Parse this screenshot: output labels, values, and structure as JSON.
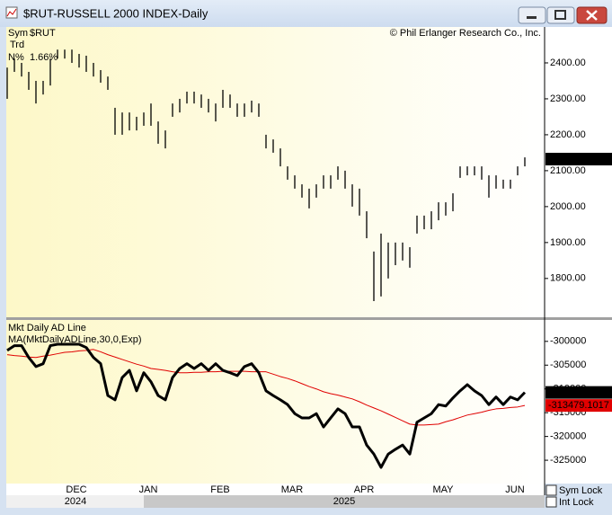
{
  "window": {
    "title": "$RUT-RUSSELL 2000 INDEX-Daily"
  },
  "legend": {
    "sym_label": "Sym",
    "sym": "$RUT",
    "trd": "Trd",
    "n_label": "N%",
    "n_value": "1.66%"
  },
  "copyright": "© Phil Erlanger Research Co., Inc.",
  "years": [
    "2024",
    "2025"
  ],
  "checkboxes": [
    "Sym Lock",
    "Int Lock"
  ],
  "chart_data": [
    {
      "type": "range_bar",
      "color": "#000000",
      "ylim": [
        1692,
        2500
      ],
      "yticks": [
        {
          "value": 1800,
          "label": "1800.00"
        },
        {
          "value": 1900,
          "label": "1900.00"
        },
        {
          "value": 2000,
          "label": "2000.00"
        },
        {
          "value": 2100,
          "label": "2100.00"
        },
        {
          "value": 2200,
          "label": "2200.00"
        },
        {
          "value": 2300,
          "label": "2300.00"
        },
        {
          "value": 2400,
          "label": "2400.00"
        }
      ],
      "last_value": 2132.25,
      "high": [
        2387,
        2412,
        2400,
        2375,
        2350,
        2350,
        2412,
        2437,
        2437,
        2437,
        2425,
        2420,
        2400,
        2380,
        2362,
        2275,
        2262,
        2262,
        2250,
        2262,
        2287,
        2237,
        2212,
        2287,
        2300,
        2320,
        2320,
        2312,
        2300,
        2287,
        2325,
        2312,
        2287,
        2287,
        2295,
        2287,
        2200,
        2187,
        2162,
        2112,
        2087,
        2062,
        2050,
        2062,
        2087,
        2087,
        2112,
        2100,
        2062,
        2050,
        1987,
        1875,
        1925,
        1900,
        1900,
        1900,
        1887,
        1975,
        1975,
        1987,
        2012,
        2012,
        2037,
        2112,
        2112,
        2112,
        2112,
        2087,
        2087,
        2075,
        2075,
        2112,
        2137
      ],
      "low": [
        2300,
        2375,
        2362,
        2325,
        2287,
        2312,
        2337,
        2412,
        2412,
        2400,
        2387,
        2375,
        2362,
        2345,
        2325,
        2200,
        2200,
        2212,
        2212,
        2225,
        2225,
        2175,
        2162,
        2250,
        2262,
        2287,
        2287,
        2275,
        2262,
        2237,
        2275,
        2275,
        2250,
        2250,
        2262,
        2250,
        2162,
        2150,
        2112,
        2075,
        2050,
        2025,
        1995,
        2025,
        2050,
        2050,
        2075,
        2050,
        2000,
        1975,
        1912,
        1737,
        1750,
        1800,
        1837,
        1850,
        1830,
        1925,
        1937,
        1937,
        1962,
        1975,
        1987,
        2080,
        2087,
        2087,
        2075,
        2025,
        2050,
        2050,
        2050,
        2087,
        2112
      ]
    },
    {
      "type": "line",
      "categories": [
        null,
        null,
        null,
        null,
        null,
        null,
        null,
        null,
        null,
        null,
        "DEC",
        null,
        null,
        null,
        null,
        null,
        null,
        null,
        null,
        null,
        "JAN",
        null,
        null,
        null,
        null,
        null,
        null,
        null,
        null,
        null,
        "FEB",
        null,
        null,
        null,
        null,
        null,
        null,
        null,
        null,
        null,
        "MAR",
        null,
        null,
        null,
        null,
        null,
        null,
        null,
        null,
        null,
        "APR",
        null,
        null,
        null,
        null,
        null,
        null,
        null,
        null,
        null,
        null,
        "MAY",
        null,
        null,
        null,
        null,
        null,
        null,
        null,
        null,
        null,
        "JUN",
        null
      ],
      "ylim": [
        -329900,
        -295500
      ],
      "yticks": [
        -325000,
        -320000,
        -315000,
        -310000,
        -305000,
        -300000
      ],
      "series": [
        {
          "name": "Mkt Daily AD Line",
          "color": "#000000",
          "values": [
            -301900,
            -300900,
            -300900,
            -303400,
            -305300,
            -304700,
            -300900,
            -300600,
            -300600,
            -300600,
            -300600,
            -301300,
            -303400,
            -304700,
            -311400,
            -312300,
            -307600,
            -306100,
            -310400,
            -306600,
            -308500,
            -311400,
            -312300,
            -307600,
            -305700,
            -304700,
            -305700,
            -304700,
            -306100,
            -304700,
            -306100,
            -306600,
            -307200,
            -305300,
            -304700,
            -306600,
            -310400,
            -311400,
            -312300,
            -313300,
            -315200,
            -316100,
            -316100,
            -315200,
            -318000,
            -316100,
            -314200,
            -315200,
            -318000,
            -318000,
            -321800,
            -323700,
            -326500,
            -323700,
            -322700,
            -321800,
            -323700,
            -317000,
            -316100,
            -315200,
            -313300,
            -313600,
            -311900,
            -310400,
            -309100,
            -310400,
            -311400,
            -313300,
            -311700,
            -313300,
            -311700,
            -312300,
            -310741
          ]
        },
        {
          "name": "MA(MktDailyADLine,30,0,Exp)",
          "color": "#e00000",
          "values": [
            -302800,
            -303000,
            -303100,
            -303300,
            -303400,
            -303100,
            -302900,
            -302600,
            -302300,
            -302200,
            -302000,
            -301900,
            -301700,
            -302200,
            -302800,
            -303300,
            -303800,
            -304300,
            -304800,
            -305200,
            -305700,
            -305900,
            -306100,
            -306400,
            -306600,
            -306600,
            -306500,
            -306500,
            -306400,
            -306400,
            -306300,
            -306300,
            -306300,
            -306300,
            -306400,
            -306400,
            -306400,
            -306900,
            -307400,
            -307800,
            -308300,
            -308900,
            -309500,
            -310000,
            -310600,
            -311000,
            -311300,
            -311700,
            -312100,
            -312700,
            -313400,
            -314000,
            -314600,
            -315300,
            -316000,
            -316700,
            -317400,
            -317600,
            -317600,
            -317500,
            -317400,
            -316900,
            -316500,
            -316000,
            -315500,
            -315200,
            -314900,
            -314500,
            -314200,
            -314100,
            -313900,
            -313800,
            -313479.1017
          ]
        }
      ]
    }
  ]
}
